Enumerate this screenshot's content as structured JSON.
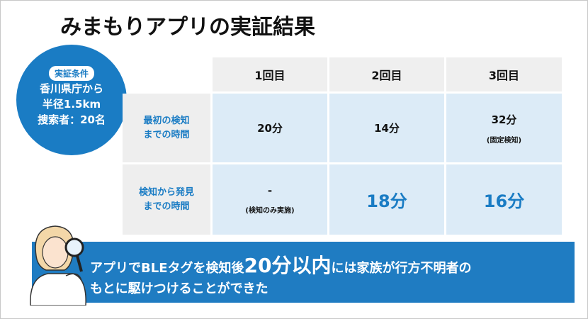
{
  "title": "みまもりアプリの実証結果",
  "conditions": {
    "label": "実証条件",
    "lines": [
      "香川県庁から",
      "半径1.5km",
      "捜索者：20名"
    ]
  },
  "table": {
    "columns": [
      "1回目",
      "2回目",
      "3回目"
    ],
    "rows": [
      {
        "label": [
          "最初の検知",
          "までの時間"
        ],
        "cells": [
          {
            "main": "20分"
          },
          {
            "main": "14分"
          },
          {
            "main": "32分",
            "note": "(固定検知)"
          }
        ]
      },
      {
        "label": [
          "検知から発見",
          "までの時間"
        ],
        "cells": [
          {
            "main": "-",
            "note": "(検知のみ実施)"
          },
          {
            "main": "18分"
          },
          {
            "main": "16分"
          }
        ]
      }
    ]
  },
  "banner": {
    "line1": [
      "アプリでBLEタグを検知後",
      "20分以内",
      "には家族が行方不明者の"
    ],
    "line2": "もとに駆けつけることができた"
  }
}
